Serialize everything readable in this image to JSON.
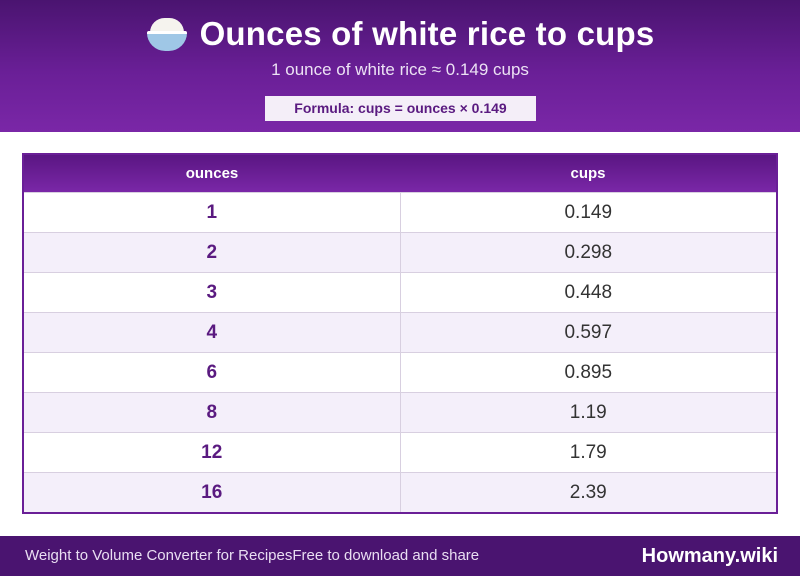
{
  "header": {
    "title": "Ounces of white rice to cups",
    "subtitle": "1 ounce of white rice ≈ 0.149 cups",
    "formula": "Formula: cups = ounces × 0.149",
    "icon": "rice-bowl-icon"
  },
  "table": {
    "columns": [
      "ounces",
      "cups"
    ],
    "rows": [
      {
        "ounces": "1",
        "cups": "0.149"
      },
      {
        "ounces": "2",
        "cups": "0.298"
      },
      {
        "ounces": "3",
        "cups": "0.448"
      },
      {
        "ounces": "4",
        "cups": "0.597"
      },
      {
        "ounces": "6",
        "cups": "0.895"
      },
      {
        "ounces": "8",
        "cups": "1.19"
      },
      {
        "ounces": "12",
        "cups": "1.79"
      },
      {
        "ounces": "16",
        "cups": "2.39"
      }
    ]
  },
  "footer": {
    "left_text": "Weight to Volume Converter for Recipes",
    "left_text_2": "Free to download and share",
    "brand": "Howmany.wiki"
  },
  "colors": {
    "primary": "#6a1f97",
    "dark": "#4a1470",
    "row_alt": "#f4effa"
  }
}
